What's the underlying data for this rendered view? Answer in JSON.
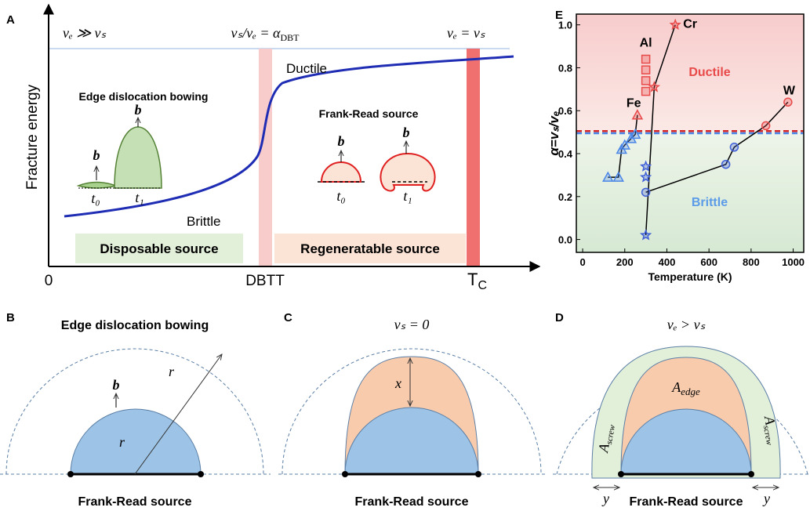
{
  "panels": {
    "A": {
      "letter": "A",
      "y_label": "Fracture energy",
      "top_left": "vₑ ≫ vₛ",
      "top_mid": "vₛ/vₑ = α",
      "top_mid_sub": "DBT",
      "top_right": "vₑ = vₛ",
      "x_zero": "0",
      "x_dbtt": "DBTT",
      "x_tc": "T",
      "x_tc_sub": "C",
      "ductile": "Ductile",
      "brittle": "Brittle",
      "edge_title": "Edge dislocation bowing",
      "fr_title": "Frank-Read source",
      "b": "b",
      "t0": "t₀",
      "t1": "t₁",
      "disposable": "Disposable source",
      "regeneratable": "Regeneratable source"
    },
    "B": {
      "letter": "B",
      "title": "Edge dislocation bowing",
      "b": "b",
      "r": "r",
      "caption": "Frank-Read source"
    },
    "C": {
      "letter": "C",
      "title": "vₛ = 0",
      "x": "x",
      "caption": "Frank-Read source"
    },
    "D": {
      "letter": "D",
      "title": "vₑ > vₛ",
      "a": "A",
      "edge": "edge",
      "screw": "screw",
      "y": "y",
      "caption": "Frank-Read source"
    }
  },
  "chart_data": {
    "type": "line",
    "letter": "E",
    "x_label": "Temperature (K)",
    "y_label": "α=vₛ/vₑ",
    "region_top": "Ductile",
    "region_bottom": "Brittle",
    "xlim": [
      -30,
      1050
    ],
    "ylim": [
      -0.06,
      1.05
    ],
    "xticks": [
      0,
      200,
      400,
      600,
      800,
      1000
    ],
    "yticks": [
      {
        "value": 0,
        "label": "0.0"
      },
      {
        "value": 0.2,
        "label": "0.2"
      },
      {
        "value": 0.4,
        "label": "0.4"
      },
      {
        "value": 0.6,
        "label": "0.6"
      },
      {
        "value": 0.8,
        "label": "0.8"
      },
      {
        "value": 1,
        "label": "1.0"
      }
    ],
    "thresholds": [
      {
        "value": 0.505,
        "color": "#d62728"
      },
      {
        "value": 0.495,
        "color": "#4a86e8"
      }
    ],
    "series": [
      {
        "name": "Al",
        "marker": "square",
        "line": false,
        "x": [
          300,
          300,
          300,
          300
        ],
        "values": [
          0.84,
          0.79,
          0.74,
          0.69
        ],
        "colors": [
          "#e84a4a",
          "#e84a4a",
          "#e84a4a",
          "#e84a4a"
        ]
      },
      {
        "name": "Cr",
        "marker": "star",
        "line": true,
        "x": [
          300,
          340,
          440
        ],
        "values": [
          0.02,
          0.71,
          1.0
        ],
        "colors": [
          "#3f5fd8",
          "#e84a4a",
          "#e84a4a"
        ]
      },
      {
        "marker": "star",
        "line": false,
        "x": [
          300,
          300
        ],
        "values": [
          0.34,
          0.29
        ],
        "colors": [
          "#3f5fd8",
          "#3f5fd8"
        ]
      },
      {
        "name": "Fe",
        "marker": "triangle",
        "line": true,
        "x": [
          120,
          170,
          185,
          200,
          230,
          250,
          260
        ],
        "values": [
          0.29,
          0.29,
          0.42,
          0.44,
          0.47,
          0.49,
          0.58
        ],
        "colors": [
          "#4a86e8",
          "#4a86e8",
          "#4a86e8",
          "#4a86e8",
          "#4a86e8",
          "#4a86e8",
          "#e84a4a"
        ]
      },
      {
        "name": "W",
        "marker": "circle",
        "line": true,
        "x": [
          300,
          680,
          720,
          870,
          975
        ],
        "values": [
          0.22,
          0.35,
          0.43,
          0.53,
          0.64
        ],
        "colors": [
          "#3f5fd8",
          "#3f5fd8",
          "#3f5fd8",
          "#e84a4a",
          "#e84a4a"
        ]
      }
    ]
  }
}
